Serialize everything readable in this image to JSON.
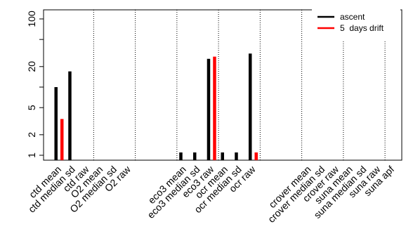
{
  "chart_data": {
    "type": "bar",
    "log_y": true,
    "categories": [
      "ctd mean",
      "ctd median sd",
      "ctd raw",
      "O2 mean",
      "O2 median sd",
      "O2 raw",
      null,
      null,
      null,
      "eco3 mean",
      "eco3 median sd",
      "eco3 raw",
      "ocr mean",
      "ocr median sd",
      "ocr raw",
      null,
      null,
      null,
      "crover mean",
      "crover median sd",
      "crover raw",
      "suna mean",
      "suna median sd",
      "suna raw",
      "suna apf"
    ],
    "series": [
      {
        "name": "ascent",
        "color": "#000000",
        "values": [
          10,
          17,
          null,
          null,
          null,
          null,
          null,
          null,
          null,
          1.1,
          1.1,
          26,
          1.1,
          1.1,
          31,
          null,
          null,
          null,
          null,
          null,
          null,
          null,
          null,
          null,
          null
        ]
      },
      {
        "name": "5  days drift",
        "color": "#ff0000",
        "values": [
          3.4,
          null,
          null,
          null,
          null,
          null,
          null,
          null,
          null,
          null,
          null,
          28,
          null,
          null,
          1.1,
          null,
          null,
          null,
          null,
          null,
          null,
          null,
          null,
          null,
          null
        ]
      }
    ],
    "ylim": [
      0.847,
      136
    ],
    "yticks": [
      1,
      2,
      5,
      20,
      100
    ],
    "yticks_minor": [
      10,
      50
    ],
    "legend": "top-right"
  }
}
